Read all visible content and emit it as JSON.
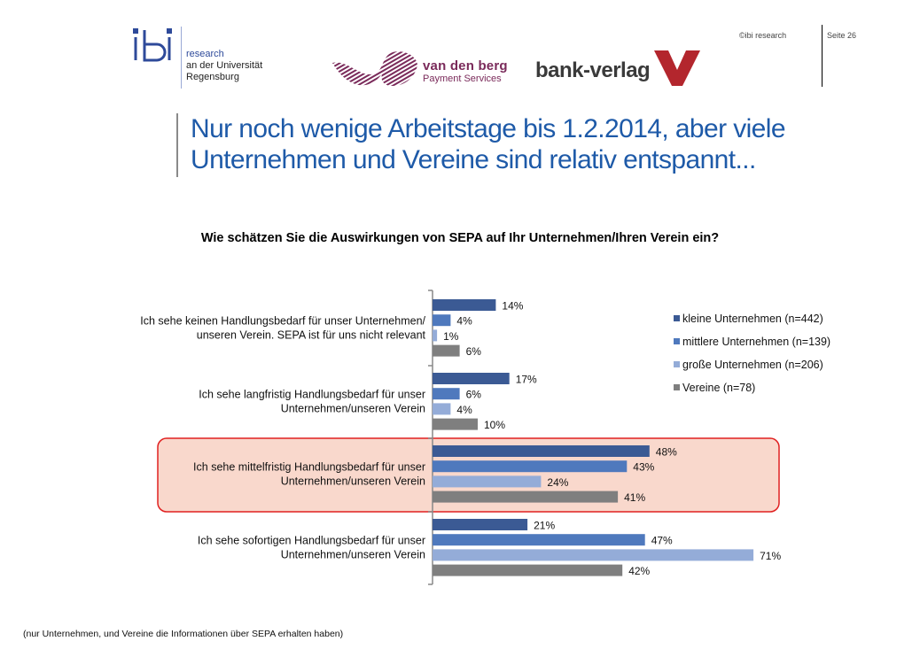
{
  "header": {
    "ibi_research": "research",
    "ibi_line2": "an der Universität",
    "ibi_line3": "Regensburg",
    "vdb_name": "van den berg",
    "vdb_sub": "Payment Services",
    "bankverlag_name": "bank-verlag",
    "copyright": "©ibi research",
    "page": "Seite 26"
  },
  "title_line1": "Nur noch wenige Arbeitstage bis 1.2.2014, aber viele",
  "title_line2": "Unternehmen und Vereine sind relativ entspannt...",
  "footnote": "(nur Unternehmen, und Vereine die Informationen über SEPA erhalten haben)",
  "colors": {
    "title": "#1e5aa8",
    "highlight_border": "#e02020",
    "highlight_fill": "#f9d8cc"
  },
  "chart_data": {
    "type": "bar",
    "orientation": "horizontal",
    "title": "Wie schätzen Sie die Auswirkungen von SEPA auf Ihr Unternehmen/Ihren Verein ein?",
    "categories": [
      [
        "Ich sehe keinen Handlungsbedarf für unser Unternehmen/",
        "unseren Verein. SEPA ist für uns nicht relevant"
      ],
      [
        "Ich sehe langfristig Handlungsbedarf für unser",
        "Unternehmen/unseren Verein"
      ],
      [
        "Ich sehe mittelfristig Handlungsbedarf für unser",
        "Unternehmen/unseren Verein"
      ],
      [
        "Ich sehe sofortigen Handlungsbedarf für unser",
        "Unternehmen/unseren Verein"
      ]
    ],
    "highlighted_category": 2,
    "series": [
      {
        "name": "kleine Unternehmen (n=442)",
        "color": "#3b5a94",
        "values": [
          14,
          17,
          48,
          21
        ]
      },
      {
        "name": "mittlere Unternehmen (n=139)",
        "color": "#4f79bd",
        "values": [
          4,
          6,
          43,
          47
        ]
      },
      {
        "name": "große Unternehmen (n=206)",
        "color": "#94acd8",
        "values": [
          1,
          4,
          24,
          71
        ]
      },
      {
        "name": "Vereine (n=78)",
        "color": "#7f7f7f",
        "values": [
          6,
          10,
          41,
          42
        ]
      }
    ],
    "value_suffix": "%",
    "legend_position": "right",
    "grid": false
  }
}
